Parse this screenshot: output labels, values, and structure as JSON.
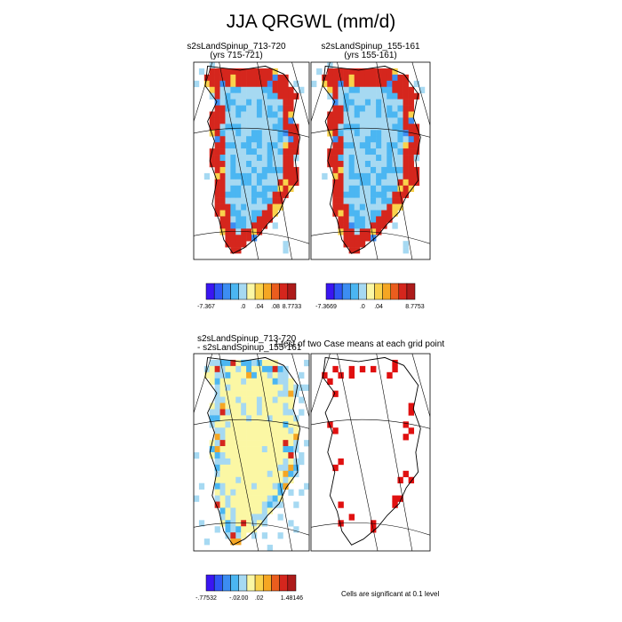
{
  "title": "JJA QRGWL (mm/d)",
  "panels": [
    {
      "id": "case1",
      "title": "s2sLandSpinup_713-720",
      "subtitle": "(yrs 715-721)"
    },
    {
      "id": "case2",
      "title": "s2sLandSpinup_155-161",
      "subtitle": "(yrs 155-161)"
    },
    {
      "id": "diff",
      "title": "s2sLandSpinup_713-720",
      "subtitle": "- s2sLandSpinup_155-161"
    },
    {
      "id": "ttest",
      "title": "t-test of two Case means at each grid point",
      "subtitle": ""
    }
  ],
  "note": "Cells are significant at 0.1 level",
  "colors": {
    "palette": [
      "#3a16f2",
      "#2f56f5",
      "#3c8df2",
      "#4bb6f2",
      "#a6d9f2",
      "#fbf7a4",
      "#f9d24c",
      "#f5a623",
      "#ea5d1e",
      "#d5261d",
      "#ad1b1a"
    ],
    "significant": "#e01010",
    "outline": "#000000"
  },
  "chart_data": [
    {
      "type": "heatmap",
      "panel": "case1",
      "colorbar": {
        "tick_labels": [
          "-7.367",
          ".0",
          ".04",
          ".08",
          "8.7733"
        ]
      }
    },
    {
      "type": "heatmap",
      "panel": "case2",
      "colorbar": {
        "tick_labels": [
          "-7.3669",
          ".0",
          ".04",
          "8.7753"
        ]
      }
    },
    {
      "type": "heatmap",
      "panel": "diff",
      "colorbar": {
        "tick_labels": [
          "-.77532",
          "-.02",
          "-.00",
          ".02",
          "1.48146"
        ]
      }
    },
    {
      "type": "heatmap",
      "panel": "ttest"
    }
  ]
}
